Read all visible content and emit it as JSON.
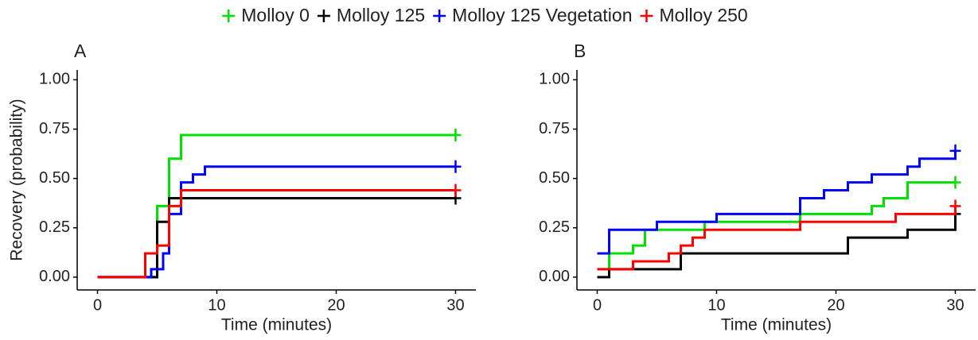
{
  "chart_data": [
    {
      "type": "step",
      "title": "A",
      "ylabel": "Recovery (probability)",
      "xlabel": "Time (minutes)",
      "xlim": [
        -1.7,
        31.7
      ],
      "ylim": [
        -0.065,
        1.05
      ],
      "xticks": [
        0,
        10,
        20,
        30
      ],
      "yticks": [
        {
          "value": 0,
          "label": "0.00"
        },
        {
          "value": 0.25,
          "label": "0.25"
        },
        {
          "value": 0.5,
          "label": "0.50"
        },
        {
          "value": 0.75,
          "label": "0.75"
        },
        {
          "value": 1,
          "label": "1.00"
        }
      ],
      "series": [
        {
          "name": "Molloy 0",
          "color": "#00e000",
          "x": [
            0,
            5,
            6,
            7,
            30
          ],
          "values": [
            0,
            0.36,
            0.6,
            0.72,
            0.72
          ]
        },
        {
          "name": "Molloy 125",
          "color": "#000000",
          "x": [
            0,
            5,
            6,
            30
          ],
          "values": [
            0,
            0.28,
            0.4,
            0.4
          ]
        },
        {
          "name": "Molloy 125 Vegetation",
          "color": "#0000ff",
          "x": [
            0,
            4.5,
            5.5,
            6,
            7,
            8,
            9,
            30
          ],
          "values": [
            0,
            0.04,
            0.12,
            0.32,
            0.48,
            0.52,
            0.56,
            0.56
          ]
        },
        {
          "name": "Molloy 250",
          "color": "#ff0000",
          "x": [
            0,
            4,
            5,
            6,
            7,
            30
          ],
          "values": [
            0,
            0.12,
            0.16,
            0.36,
            0.44,
            0.44
          ]
        }
      ]
    },
    {
      "type": "step",
      "title": "B",
      "xlabel": "Time (minutes)",
      "xlim": [
        -1.7,
        31.7
      ],
      "ylim": [
        -0.065,
        1.05
      ],
      "xticks": [
        0,
        10,
        20,
        30
      ],
      "yticks": [
        {
          "value": 0,
          "label": "0.00"
        },
        {
          "value": 0.25,
          "label": "0.25"
        },
        {
          "value": 0.5,
          "label": "0.50"
        },
        {
          "value": 0.75,
          "label": "0.75"
        },
        {
          "value": 1,
          "label": "1.00"
        }
      ],
      "series": [
        {
          "color": "#00e000",
          "x": [
            0,
            1,
            3,
            4,
            9,
            17,
            23,
            24,
            26,
            30
          ],
          "values": [
            0.04,
            0.12,
            0.16,
            0.24,
            0.28,
            0.32,
            0.36,
            0.4,
            0.48,
            0.48
          ]
        },
        {
          "color": "#000000",
          "x": [
            0,
            1,
            7,
            21,
            26,
            30
          ],
          "values": [
            0,
            0.04,
            0.12,
            0.2,
            0.24,
            0.32
          ]
        },
        {
          "color": "#0000ff",
          "x": [
            0,
            1,
            5,
            10,
            17,
            19,
            21,
            23,
            26,
            27,
            30
          ],
          "values": [
            0.12,
            0.24,
            0.28,
            0.32,
            0.4,
            0.44,
            0.48,
            0.52,
            0.56,
            0.6,
            0.64
          ]
        },
        {
          "color": "#ff0000",
          "x": [
            0,
            3,
            6,
            7,
            8,
            9,
            17,
            25,
            30
          ],
          "values": [
            0.04,
            0.08,
            0.12,
            0.16,
            0.2,
            0.24,
            0.28,
            0.32,
            0.36
          ]
        }
      ]
    }
  ]
}
